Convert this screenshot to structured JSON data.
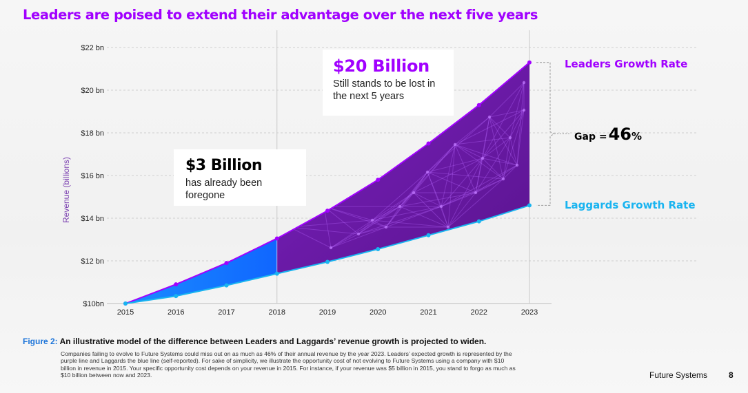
{
  "title": "Leaders are poised to extend their advantage over the next five years",
  "annotations": {
    "box_a": {
      "amount": "$20 Billion",
      "text": "Still stands to be lost in the next 5 years"
    },
    "box_b": {
      "amount": "$3 Billion",
      "text": "has already been foregone"
    },
    "leaders_label": "Leaders Growth Rate",
    "laggards_label": "Laggards Growth Rate",
    "gap_prefix": "Gap =",
    "gap_value": "46",
    "gap_suffix": "%"
  },
  "colors": {
    "leaders": "#a100ff",
    "laggards": "#19b4f0",
    "foregone_fill": "#1066ff",
    "future_fill": "#6a1aa6"
  },
  "chart_data": {
    "type": "line",
    "title": "Leaders are poised to extend their advantage over the next five years",
    "xlabel": "",
    "ylabel": "Revenue (billions)",
    "categories": [
      "2015",
      "2016",
      "2017",
      "2018",
      "2019",
      "2020",
      "2021",
      "2022",
      "2023"
    ],
    "ylim": [
      10,
      22
    ],
    "yticks": [
      10,
      12,
      14,
      16,
      18,
      20,
      22
    ],
    "ytick_labels": [
      "$10bn",
      "$12 bn",
      "$14 bn",
      "$16 bn",
      "$18 bn",
      "$20 bn",
      "$22 bn"
    ],
    "series": [
      {
        "name": "Leaders Growth Rate",
        "values": [
          10.0,
          10.9,
          11.9,
          13.05,
          14.35,
          15.8,
          17.5,
          19.3,
          21.3
        ]
      },
      {
        "name": "Laggards Growth Rate",
        "values": [
          10.0,
          10.35,
          10.85,
          11.4,
          11.95,
          12.55,
          13.2,
          13.85,
          14.6
        ]
      }
    ],
    "divider_year": "2018",
    "grid": "horizontal dashed"
  },
  "caption": {
    "figure_label": "Figure 2:",
    "title": "An illustrative model of the difference between Leaders and Laggards’ revenue growth is projected to widen.",
    "body": "Companies failing to evolve to Future Systems could miss out on as much as 46% of their annual revenue by the year 2023. Leaders’ expected growth is represented by the purple line and Laggards the blue line (self-reported). For sake of simplicity, we illustrate the opportunity cost of not evolving to Future Systems using a company with $10 billion in revenue in 2015. Your specific opportunity cost depends on your revenue in 2015. For instance, if your revenue was $5 billion in 2015, you stand to forgo as much as $10 billion between now and 2023."
  },
  "footer": {
    "brand": "Future Systems",
    "page": "8"
  }
}
